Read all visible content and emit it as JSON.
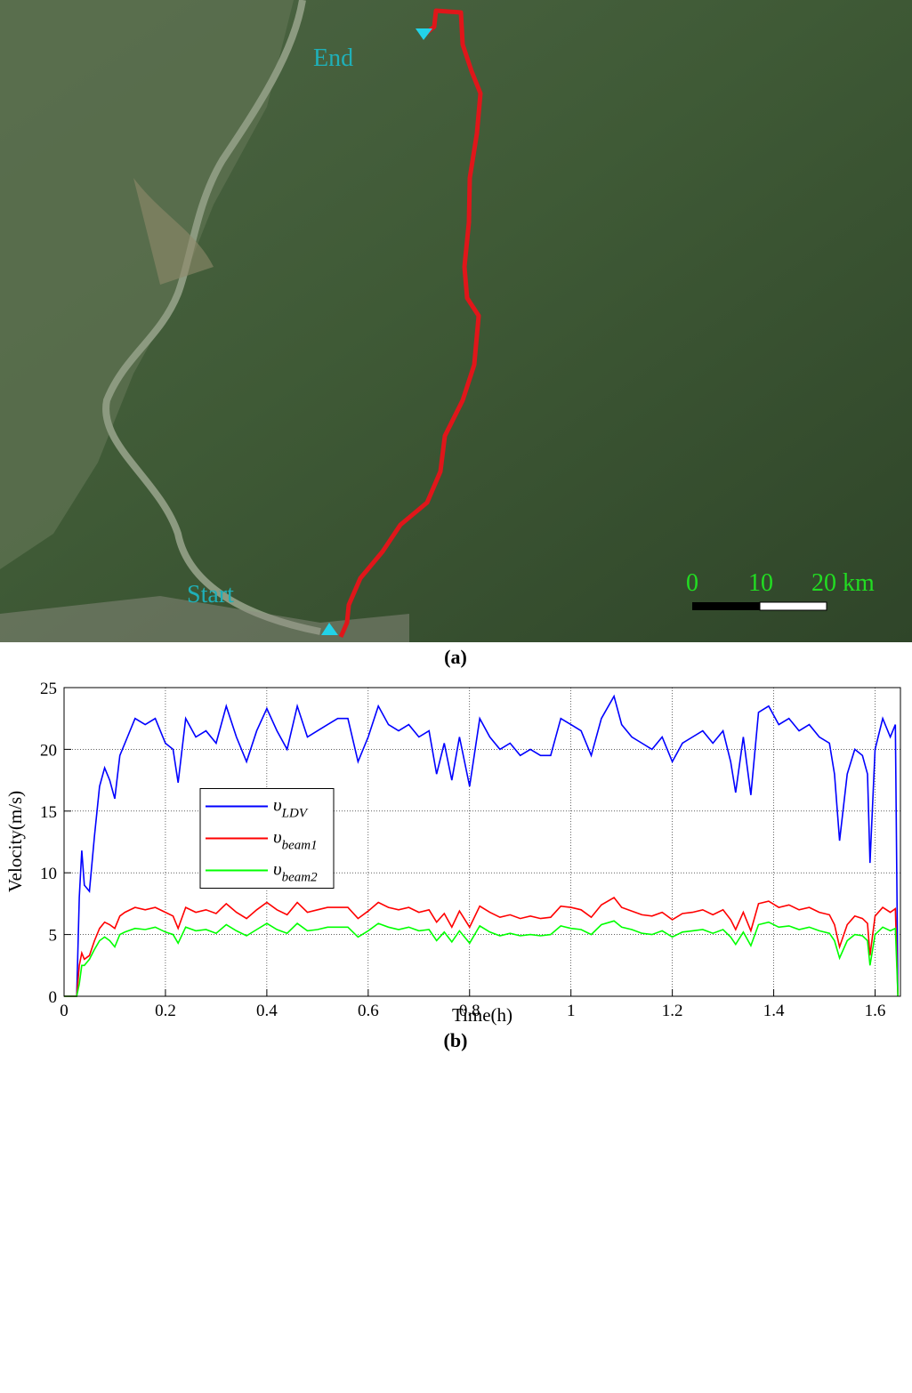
{
  "map": {
    "end_label": "End",
    "start_label": "Start",
    "scale_labels": [
      "0",
      "10",
      "20 km"
    ],
    "caption": "(a)"
  },
  "chart_data": {
    "type": "line",
    "caption": "(b)",
    "x_label": "Time(h)",
    "y_label": "Velocity(m/s)",
    "xlim": [
      0,
      1.65
    ],
    "xticks": [
      0,
      0.2,
      0.4,
      0.6,
      0.8,
      1,
      1.2,
      1.4,
      1.6
    ],
    "ylim": [
      0,
      25
    ],
    "yticks": [
      0,
      5,
      10,
      15,
      20,
      25
    ],
    "grid": true,
    "legend": "center left",
    "x": [
      0,
      0.025,
      0.03,
      0.035,
      0.04,
      0.05,
      0.06,
      0.07,
      0.08,
      0.09,
      0.1,
      0.11,
      0.12,
      0.14,
      0.16,
      0.18,
      0.2,
      0.215,
      0.225,
      0.24,
      0.26,
      0.28,
      0.3,
      0.32,
      0.34,
      0.36,
      0.38,
      0.4,
      0.42,
      0.44,
      0.46,
      0.48,
      0.5,
      0.52,
      0.54,
      0.56,
      0.58,
      0.6,
      0.62,
      0.64,
      0.66,
      0.68,
      0.7,
      0.72,
      0.735,
      0.75,
      0.765,
      0.78,
      0.8,
      0.82,
      0.84,
      0.86,
      0.88,
      0.9,
      0.92,
      0.94,
      0.96,
      0.98,
      1.0,
      1.02,
      1.04,
      1.06,
      1.085,
      1.1,
      1.12,
      1.14,
      1.16,
      1.18,
      1.2,
      1.22,
      1.24,
      1.26,
      1.28,
      1.3,
      1.315,
      1.325,
      1.34,
      1.355,
      1.37,
      1.39,
      1.41,
      1.43,
      1.45,
      1.47,
      1.49,
      1.51,
      1.52,
      1.53,
      1.545,
      1.56,
      1.575,
      1.585,
      1.59,
      1.6,
      1.615,
      1.63,
      1.64,
      1.645
    ],
    "series": [
      {
        "name": "υLDV",
        "color": "#0000ff",
        "values": [
          0,
          0,
          8,
          11.8,
          9,
          8.5,
          13,
          17,
          18.5,
          17.5,
          16,
          19.5,
          20.5,
          22.5,
          22,
          22.5,
          20.5,
          20,
          17.3,
          22.5,
          21,
          21.5,
          20.5,
          23.5,
          21,
          19,
          21.5,
          23.3,
          21.5,
          20,
          23.5,
          21,
          21.5,
          22,
          22.5,
          22.5,
          19,
          21,
          23.5,
          22,
          21.5,
          22,
          21,
          21.5,
          18,
          20.5,
          17.5,
          21,
          17,
          22.5,
          21,
          20,
          20.5,
          19.5,
          20,
          19.5,
          19.5,
          22.5,
          22,
          21.5,
          19.5,
          22.5,
          24.3,
          22,
          21,
          20.5,
          20,
          21,
          19,
          20.5,
          21,
          21.5,
          20.5,
          21.5,
          19,
          16.5,
          21,
          16.3,
          23,
          23.5,
          22,
          22.5,
          21.5,
          22,
          21,
          20.5,
          18,
          12.6,
          18,
          20,
          19.5,
          18,
          10.8,
          20,
          22.5,
          21,
          22,
          0
        ]
      },
      {
        "name": "υbeam1",
        "color": "#ff0000",
        "values": [
          0,
          0,
          2.5,
          3.5,
          3,
          3.3,
          4.5,
          5.5,
          6,
          5.8,
          5.5,
          6.5,
          6.8,
          7.2,
          7,
          7.2,
          6.8,
          6.5,
          5.5,
          7.2,
          6.8,
          7,
          6.7,
          7.5,
          6.8,
          6.3,
          7,
          7.6,
          7,
          6.6,
          7.6,
          6.8,
          7,
          7.2,
          7.2,
          7.2,
          6.3,
          6.9,
          7.6,
          7.2,
          7,
          7.2,
          6.8,
          7,
          6,
          6.7,
          5.6,
          6.9,
          5.6,
          7.3,
          6.8,
          6.4,
          6.6,
          6.3,
          6.5,
          6.3,
          6.4,
          7.3,
          7.2,
          7,
          6.4,
          7.4,
          8,
          7.2,
          6.9,
          6.6,
          6.5,
          6.8,
          6.2,
          6.7,
          6.8,
          7,
          6.6,
          7,
          6.2,
          5.4,
          6.8,
          5.3,
          7.5,
          7.7,
          7.2,
          7.4,
          7,
          7.2,
          6.8,
          6.6,
          5.8,
          4,
          5.8,
          6.5,
          6.3,
          5.9,
          3.3,
          6.5,
          7.2,
          6.8,
          7.1,
          0
        ]
      },
      {
        "name": "υbeam2",
        "color": "#00ff00",
        "values": [
          0,
          0,
          1,
          2.5,
          2.5,
          3,
          3.8,
          4.5,
          4.8,
          4.5,
          4,
          5,
          5.2,
          5.5,
          5.4,
          5.6,
          5.2,
          5,
          4.3,
          5.6,
          5.3,
          5.4,
          5.1,
          5.8,
          5.3,
          4.9,
          5.4,
          5.9,
          5.4,
          5.1,
          5.9,
          5.3,
          5.4,
          5.6,
          5.6,
          5.6,
          4.8,
          5.3,
          5.9,
          5.6,
          5.4,
          5.6,
          5.3,
          5.4,
          4.5,
          5.2,
          4.4,
          5.3,
          4.3,
          5.7,
          5.2,
          4.9,
          5.1,
          4.9,
          5,
          4.9,
          5,
          5.7,
          5.5,
          5.4,
          5,
          5.8,
          6.1,
          5.6,
          5.4,
          5.1,
          5,
          5.3,
          4.8,
          5.2,
          5.3,
          5.4,
          5.1,
          5.4,
          4.8,
          4.2,
          5.2,
          4.1,
          5.8,
          6,
          5.6,
          5.7,
          5.4,
          5.6,
          5.3,
          5.1,
          4.5,
          3.1,
          4.5,
          5,
          4.9,
          4.5,
          2.5,
          5,
          5.6,
          5.3,
          5.5,
          0
        ]
      }
    ]
  }
}
